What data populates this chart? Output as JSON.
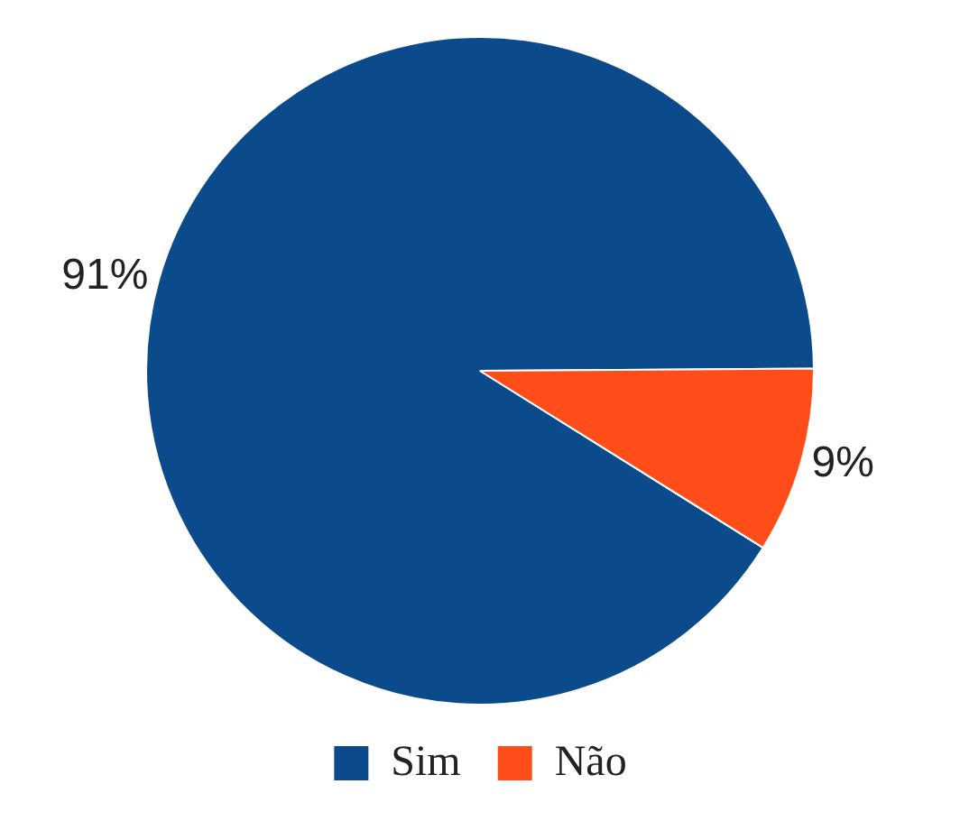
{
  "chart_data": {
    "type": "pie",
    "categories": [
      "Sim",
      "Não"
    ],
    "values": [
      91,
      9
    ],
    "colors": [
      "#0b4a8b",
      "#ff4d1a"
    ],
    "value_labels": [
      "91%",
      "9%"
    ],
    "legend": "bottom"
  }
}
